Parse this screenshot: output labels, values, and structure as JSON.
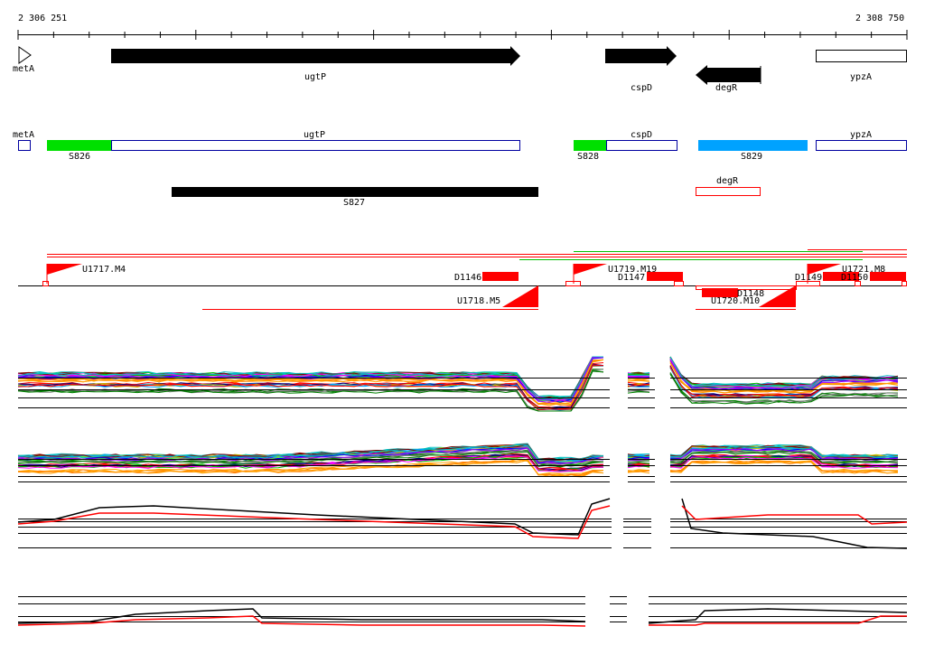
{
  "coordinates": {
    "start": "2 306 251",
    "end": "2 308 750"
  },
  "annotated_genes": [
    {
      "id": "metA-arrow",
      "label": "metA",
      "strand": "+",
      "style": "open"
    },
    {
      "id": "ugtP-arrow",
      "label": "ugtP",
      "strand": "+",
      "style": "solid"
    },
    {
      "id": "cspD-arrow",
      "label": "cspD",
      "strand": "+",
      "style": "solid"
    },
    {
      "id": "degR-arrow",
      "label": "degR",
      "strand": "-",
      "style": "solid"
    },
    {
      "id": "ypzA-box",
      "label": "ypzA",
      "strand": "+",
      "style": "open"
    }
  ],
  "transcript_track": {
    "genes": [
      {
        "label": "metA"
      },
      {
        "label": "ugtP"
      },
      {
        "label": "cspD"
      },
      {
        "label": "ypzA"
      },
      {
        "label": "degR"
      }
    ],
    "segments": [
      {
        "label": "S826",
        "color": "#00e000"
      },
      {
        "label": "S828",
        "color": "#00e000"
      },
      {
        "label": "S829",
        "color": "#00a2ff"
      },
      {
        "label": "S827",
        "color": "#000000"
      }
    ]
  },
  "features": [
    {
      "label": "U1717.M4"
    },
    {
      "label": "D1146"
    },
    {
      "label": "U1718.M5"
    },
    {
      "label": "U1719.M19"
    },
    {
      "label": "D1147"
    },
    {
      "label": "D1148"
    },
    {
      "label": "U1720.M10"
    },
    {
      "label": "D1149"
    },
    {
      "label": "U1721.M8"
    },
    {
      "label": "D1150"
    }
  ],
  "colors": {
    "feature": "#ff0000",
    "gene_outline": "#0000a0",
    "line": "#000000"
  }
}
